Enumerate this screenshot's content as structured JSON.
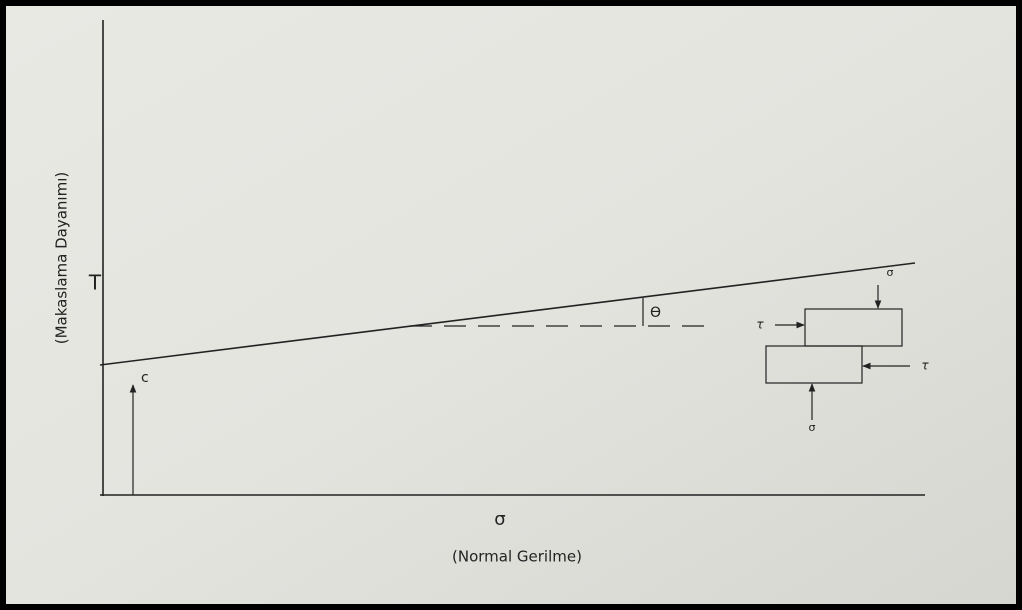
{
  "diagram": {
    "y_axis_title": "(Makaslama Dayanımı)",
    "y_axis_symbol": "T",
    "x_axis_symbol": "σ",
    "x_axis_title": "(Normal Gerilme)",
    "cohesion": "c",
    "angle": "Ө",
    "block": {
      "sigma_top": "σ",
      "tau_left": "τ",
      "tau_right": "τ",
      "sigma_bottom": "σ"
    }
  }
}
